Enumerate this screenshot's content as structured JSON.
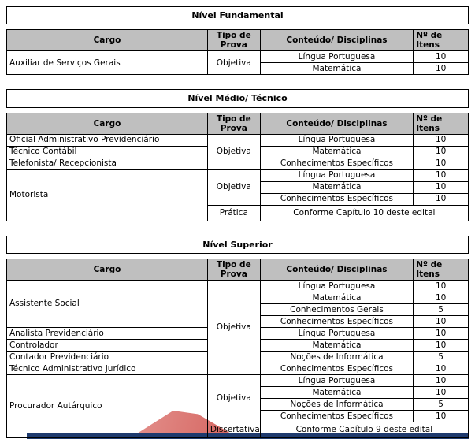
{
  "decor": {
    "watermark_color_light": "#e4928e",
    "watermark_color_dark": "#d4625d",
    "footer_bar_color": "#1e3a6e",
    "header_fill": "#bfbfbf"
  },
  "tables": [
    {
      "title": "Nível Fundamental",
      "columns": [
        "Cargo",
        "Tipo de Prova",
        "Conteúdo/ Disciplinas",
        "Nº de Itens"
      ],
      "rows": [
        {
          "cells": [
            {
              "kind": "cargo",
              "text": "Auxiliar de Serviços Gerais",
              "rowspan": 2
            },
            {
              "kind": "tipo",
              "text": "Objetiva",
              "rowspan": 2
            },
            {
              "kind": "disc",
              "text": "Língua Portuguesa"
            },
            {
              "kind": "num",
              "text": "10"
            }
          ]
        },
        {
          "cells": [
            {
              "kind": "disc",
              "text": "Matemática"
            },
            {
              "kind": "num",
              "text": "10"
            }
          ]
        }
      ]
    },
    {
      "title": "Nível Médio/ Técnico",
      "columns": [
        "Cargo",
        "Tipo de Prova",
        "Conteúdo/ Disciplinas",
        "Nº de Itens"
      ],
      "rows": [
        {
          "cells": [
            {
              "kind": "cargo",
              "text": "Oficial Administrativo Previdenciário"
            },
            {
              "kind": "tipo",
              "text": "Objetiva",
              "rowspan": 3
            },
            {
              "kind": "disc",
              "text": "Língua Portuguesa"
            },
            {
              "kind": "num",
              "text": "10"
            }
          ]
        },
        {
          "cells": [
            {
              "kind": "cargo",
              "text": "Técnico Contábil"
            },
            {
              "kind": "disc",
              "text": "Matemática"
            },
            {
              "kind": "num",
              "text": "10"
            }
          ]
        },
        {
          "cells": [
            {
              "kind": "cargo",
              "text": "Telefonista/ Recepcionista"
            },
            {
              "kind": "disc",
              "text": "Conhecimentos Específicos"
            },
            {
              "kind": "num",
              "text": "10"
            }
          ]
        },
        {
          "cells": [
            {
              "kind": "cargo",
              "text": "Motorista",
              "rowspan": 4
            },
            {
              "kind": "tipo",
              "text": "Objetiva",
              "rowspan": 3
            },
            {
              "kind": "disc",
              "text": "Língua Portuguesa"
            },
            {
              "kind": "num",
              "text": "10"
            }
          ]
        },
        {
          "cells": [
            {
              "kind": "disc",
              "text": "Matemática"
            },
            {
              "kind": "num",
              "text": "10"
            }
          ]
        },
        {
          "cells": [
            {
              "kind": "disc",
              "text": "Conhecimentos Específicos"
            },
            {
              "kind": "num",
              "text": "10"
            }
          ]
        },
        {
          "cells": [
            {
              "kind": "tipo",
              "text": "Prática"
            },
            {
              "kind": "nota",
              "text": "Conforme Capítulo 10 deste edital",
              "colspan": 2
            }
          ]
        }
      ]
    },
    {
      "title": "Nível Superior",
      "columns": [
        "Cargo",
        "Tipo de Prova",
        "Conteúdo/ Disciplinas",
        "Nº de Itens"
      ],
      "rows": [
        {
          "cells": [
            {
              "kind": "cargo",
              "text": "Assistente Social",
              "rowspan": 4
            },
            {
              "kind": "tipo",
              "text": "Objetiva",
              "rowspan": 8
            },
            {
              "kind": "disc",
              "text": "Língua Portuguesa"
            },
            {
              "kind": "num",
              "text": "10"
            }
          ]
        },
        {
          "cells": [
            {
              "kind": "disc",
              "text": "Matemática"
            },
            {
              "kind": "num",
              "text": "10"
            }
          ]
        },
        {
          "cells": [
            {
              "kind": "disc",
              "text": "Conhecimentos Gerais"
            },
            {
              "kind": "num",
              "text": "5"
            }
          ]
        },
        {
          "cells": [
            {
              "kind": "disc",
              "text": "Conhecimentos Específicos"
            },
            {
              "kind": "num",
              "text": "10"
            }
          ]
        },
        {
          "cells": [
            {
              "kind": "cargo",
              "text": "Analista Previdenciário"
            },
            {
              "kind": "disc",
              "text": "Língua Portuguesa"
            },
            {
              "kind": "num",
              "text": "10"
            }
          ]
        },
        {
          "cells": [
            {
              "kind": "cargo",
              "text": "Controlador"
            },
            {
              "kind": "disc",
              "text": "Matemática"
            },
            {
              "kind": "num",
              "text": "10"
            }
          ]
        },
        {
          "cells": [
            {
              "kind": "cargo",
              "text": "Contador Previdenciário"
            },
            {
              "kind": "disc",
              "text": "Noções de Informática"
            },
            {
              "kind": "num",
              "text": "5"
            }
          ]
        },
        {
          "cells": [
            {
              "kind": "cargo",
              "text": "Técnico Administrativo Jurídico"
            },
            {
              "kind": "disc",
              "text": "Conhecimentos Específicos"
            },
            {
              "kind": "num",
              "text": "10"
            }
          ]
        },
        {
          "cells": [
            {
              "kind": "cargo",
              "text": "Procurador Autárquico",
              "rowspan": 5
            },
            {
              "kind": "tipo",
              "text": "Objetiva",
              "rowspan": 4
            },
            {
              "kind": "disc",
              "text": "Língua Portuguesa"
            },
            {
              "kind": "num",
              "text": "10"
            }
          ]
        },
        {
          "cells": [
            {
              "kind": "disc",
              "text": "Matemática"
            },
            {
              "kind": "num",
              "text": "10"
            }
          ]
        },
        {
          "cells": [
            {
              "kind": "disc",
              "text": "Noções de Informática"
            },
            {
              "kind": "num",
              "text": "5"
            }
          ]
        },
        {
          "cells": [
            {
              "kind": "disc",
              "text": "Conhecimentos Específicos"
            },
            {
              "kind": "num",
              "text": "10"
            }
          ]
        },
        {
          "cells": [
            {
              "kind": "tipo",
              "text": "Dissertativa"
            },
            {
              "kind": "nota",
              "text": "Conforme Capítulo 9 deste edital",
              "colspan": 2
            }
          ]
        }
      ]
    }
  ]
}
